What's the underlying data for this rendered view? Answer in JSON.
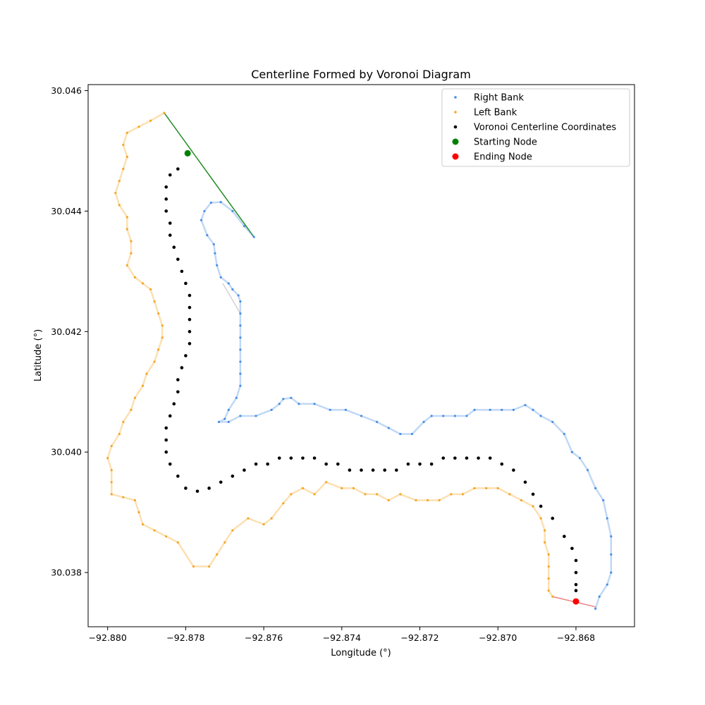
{
  "chart_data": {
    "type": "scatter",
    "title": "Centerline Formed by Voronoi Diagram",
    "xlabel": "Longitude (°)",
    "ylabel": "Latitude (°)",
    "xlim": [
      -92.8805,
      -92.8665
    ],
    "ylim": [
      30.0371,
      30.0461
    ],
    "xticks": [
      -92.88,
      -92.878,
      -92.876,
      -92.874,
      -92.872,
      -92.87,
      -92.868
    ],
    "yticks": [
      30.038,
      30.04,
      30.042,
      30.044,
      30.046
    ],
    "xtick_labels": [
      "−92.880",
      "−92.878",
      "−92.876",
      "−92.874",
      "−92.872",
      "−92.870",
      "−92.868"
    ],
    "ytick_labels": [
      "30.038",
      "30.040",
      "30.042",
      "30.044",
      "30.046"
    ],
    "grid": false,
    "legend_position": "top-right",
    "colors": {
      "right_bank": "#4a90e2",
      "left_bank": "#f5a623",
      "centerline": "#000000",
      "start": "#008000",
      "end": "#ff0000",
      "start_line": "#228b22",
      "end_line": "#f08080",
      "gap_line": "#d3d3d3"
    },
    "series": [
      {
        "name": "Right Bank",
        "marker": "point",
        "points": [
          [
            -92.87625,
            30.04357
          ],
          [
            -92.8765,
            30.04375
          ],
          [
            -92.8768,
            30.044
          ],
          [
            -92.8771,
            30.04415
          ],
          [
            -92.87735,
            30.04414
          ],
          [
            -92.87752,
            30.044
          ],
          [
            -92.8776,
            30.04385
          ],
          [
            -92.87745,
            30.0436
          ],
          [
            -92.87728,
            30.04345
          ],
          [
            -92.87725,
            30.0433
          ],
          [
            -92.8772,
            30.0431
          ],
          [
            -92.8771,
            30.0429
          ],
          [
            -92.8769,
            30.0428
          ],
          [
            -92.8768,
            30.0427
          ],
          [
            -92.87665,
            30.0426
          ],
          [
            -92.8766,
            30.0425
          ],
          [
            -92.8766,
            30.0423
          ],
          [
            -92.8766,
            30.0421
          ],
          [
            -92.8766,
            30.0419
          ],
          [
            -92.8766,
            30.0417
          ],
          [
            -92.8766,
            30.0415
          ],
          [
            -92.8766,
            30.0413
          ],
          [
            -92.8766,
            30.0411
          ],
          [
            -92.8767,
            30.0409
          ],
          [
            -92.8769,
            30.0407
          ],
          [
            -92.877,
            30.04055
          ],
          [
            -92.87715,
            30.0405
          ],
          [
            -92.8769,
            30.0405
          ],
          [
            -92.8766,
            30.0406
          ],
          [
            -92.8762,
            30.0406
          ],
          [
            -92.8758,
            30.0407
          ],
          [
            -92.8756,
            30.0408
          ],
          [
            -92.8755,
            30.04088
          ],
          [
            -92.8753,
            30.0409
          ],
          [
            -92.8751,
            30.0408
          ],
          [
            -92.8747,
            30.0408
          ],
          [
            -92.8743,
            30.0407
          ],
          [
            -92.8739,
            30.0407
          ],
          [
            -92.8735,
            30.0406
          ],
          [
            -92.8731,
            30.0405
          ],
          [
            -92.8728,
            30.0404
          ],
          [
            -92.8725,
            30.0403
          ],
          [
            -92.8722,
            30.0403
          ],
          [
            -92.8719,
            30.0405
          ],
          [
            -92.8717,
            30.0406
          ],
          [
            -92.8714,
            30.0406
          ],
          [
            -92.8711,
            30.0406
          ],
          [
            -92.8708,
            30.0406
          ],
          [
            -92.8706,
            30.0407
          ],
          [
            -92.8702,
            30.0407
          ],
          [
            -92.8699,
            30.0407
          ],
          [
            -92.8696,
            30.0407
          ],
          [
            -92.8693,
            30.04078
          ],
          [
            -92.8691,
            30.0407
          ],
          [
            -92.8689,
            30.0406
          ],
          [
            -92.8686,
            30.0405
          ],
          [
            -92.8683,
            30.0403
          ],
          [
            -92.8681,
            30.04
          ],
          [
            -92.8679,
            30.0399
          ],
          [
            -92.8677,
            30.0397
          ],
          [
            -92.8675,
            30.0394
          ],
          [
            -92.8673,
            30.0392
          ],
          [
            -92.8672,
            30.0389
          ],
          [
            -92.8671,
            30.0386
          ],
          [
            -92.8671,
            30.0383
          ],
          [
            -92.8671,
            30.038
          ],
          [
            -92.8672,
            30.0378
          ],
          [
            -92.8674,
            30.0376
          ],
          [
            -92.8675,
            30.0374
          ]
        ]
      },
      {
        "name": "Left Bank",
        "marker": "point",
        "points": [
          [
            -92.87855,
            30.04563
          ],
          [
            -92.8789,
            30.0455
          ],
          [
            -92.8792,
            30.0454
          ],
          [
            -92.8795,
            30.0453
          ],
          [
            -92.8796,
            30.0451
          ],
          [
            -92.8795,
            30.0449
          ],
          [
            -92.8796,
            30.0447
          ],
          [
            -92.8797,
            30.0445
          ],
          [
            -92.8798,
            30.0443
          ],
          [
            -92.8797,
            30.0441
          ],
          [
            -92.8795,
            30.0439
          ],
          [
            -92.8795,
            30.0437
          ],
          [
            -92.8794,
            30.0435
          ],
          [
            -92.8794,
            30.0433
          ],
          [
            -92.8795,
            30.0431
          ],
          [
            -92.8793,
            30.0429
          ],
          [
            -92.8791,
            30.0428
          ],
          [
            -92.8789,
            30.0427
          ],
          [
            -92.8788,
            30.0425
          ],
          [
            -92.8787,
            30.0423
          ],
          [
            -92.8786,
            30.0421
          ],
          [
            -92.8786,
            30.0419
          ],
          [
            -92.8787,
            30.0417
          ],
          [
            -92.8788,
            30.0415
          ],
          [
            -92.879,
            30.0413
          ],
          [
            -92.8791,
            30.0411
          ],
          [
            -92.8793,
            30.0409
          ],
          [
            -92.8794,
            30.0407
          ],
          [
            -92.8796,
            30.0405
          ],
          [
            -92.8797,
            30.0403
          ],
          [
            -92.8799,
            30.0401
          ],
          [
            -92.88,
            30.0399
          ],
          [
            -92.8799,
            30.0397
          ],
          [
            -92.8799,
            30.0395
          ],
          [
            -92.8799,
            30.0393
          ],
          [
            -92.8796,
            30.03925
          ],
          [
            -92.8793,
            30.0392
          ],
          [
            -92.8792,
            30.039
          ],
          [
            -92.8791,
            30.0388
          ],
          [
            -92.8788,
            30.0387
          ],
          [
            -92.8785,
            30.0386
          ],
          [
            -92.8782,
            30.0385
          ],
          [
            -92.8778,
            30.0381
          ],
          [
            -92.8774,
            30.0381
          ],
          [
            -92.8772,
            30.0383
          ],
          [
            -92.877,
            30.0385
          ],
          [
            -92.8768,
            30.0387
          ],
          [
            -92.8764,
            30.0389
          ],
          [
            -92.876,
            30.0388
          ],
          [
            -92.8758,
            30.0389
          ],
          [
            -92.8755,
            30.03915
          ],
          [
            -92.8753,
            30.0393
          ],
          [
            -92.875,
            30.0394
          ],
          [
            -92.8747,
            30.0393
          ],
          [
            -92.8744,
            30.0395
          ],
          [
            -92.874,
            30.0394
          ],
          [
            -92.8737,
            30.0394
          ],
          [
            -92.8734,
            30.0393
          ],
          [
            -92.8731,
            30.0393
          ],
          [
            -92.8728,
            30.0392
          ],
          [
            -92.8725,
            30.0393
          ],
          [
            -92.8721,
            30.0392
          ],
          [
            -92.8718,
            30.0392
          ],
          [
            -92.8715,
            30.0392
          ],
          [
            -92.8712,
            30.0393
          ],
          [
            -92.8709,
            30.0393
          ],
          [
            -92.8706,
            30.0394
          ],
          [
            -92.8703,
            30.0394
          ],
          [
            -92.87,
            30.0394
          ],
          [
            -92.8697,
            30.0393
          ],
          [
            -92.8694,
            30.0392
          ],
          [
            -92.8691,
            30.0391
          ],
          [
            -92.8689,
            30.0389
          ],
          [
            -92.8688,
            30.0387
          ],
          [
            -92.8688,
            30.0385
          ],
          [
            -92.8687,
            30.0383
          ],
          [
            -92.8687,
            30.0381
          ],
          [
            -92.8687,
            30.0379
          ],
          [
            -92.8687,
            30.0377
          ],
          [
            -92.8686,
            30.0376
          ]
        ]
      },
      {
        "name": "Voronoi Centerline Coordinates",
        "marker": "dot",
        "points": [
          [
            -92.87795,
            30.04495
          ],
          [
            -92.8782,
            30.0447
          ],
          [
            -92.8784,
            30.0446
          ],
          [
            -92.8785,
            30.0444
          ],
          [
            -92.8785,
            30.0442
          ],
          [
            -92.8785,
            30.044
          ],
          [
            -92.8784,
            30.0438
          ],
          [
            -92.8784,
            30.0436
          ],
          [
            -92.8783,
            30.0434
          ],
          [
            -92.8782,
            30.0432
          ],
          [
            -92.8781,
            30.043
          ],
          [
            -92.878,
            30.0428
          ],
          [
            -92.8779,
            30.0426
          ],
          [
            -92.8779,
            30.0424
          ],
          [
            -92.8779,
            30.0422
          ],
          [
            -92.8779,
            30.042
          ],
          [
            -92.8779,
            30.0418
          ],
          [
            -92.878,
            30.0416
          ],
          [
            -92.8781,
            30.0414
          ],
          [
            -92.8782,
            30.0412
          ],
          [
            -92.8782,
            30.041
          ],
          [
            -92.8783,
            30.0408
          ],
          [
            -92.8784,
            30.0406
          ],
          [
            -92.8785,
            30.0404
          ],
          [
            -92.8785,
            30.0402
          ],
          [
            -92.8785,
            30.04
          ],
          [
            -92.8784,
            30.0398
          ],
          [
            -92.8782,
            30.0396
          ],
          [
            -92.878,
            30.0394
          ],
          [
            -92.8777,
            30.03935
          ],
          [
            -92.8774,
            30.0394
          ],
          [
            -92.8771,
            30.0395
          ],
          [
            -92.8768,
            30.0396
          ],
          [
            -92.8765,
            30.0397
          ],
          [
            -92.8762,
            30.0398
          ],
          [
            -92.8759,
            30.0398
          ],
          [
            -92.8756,
            30.0399
          ],
          [
            -92.8753,
            30.0399
          ],
          [
            -92.875,
            30.0399
          ],
          [
            -92.8747,
            30.0399
          ],
          [
            -92.8744,
            30.0398
          ],
          [
            -92.8741,
            30.0398
          ],
          [
            -92.8738,
            30.0397
          ],
          [
            -92.8735,
            30.0397
          ],
          [
            -92.8732,
            30.0397
          ],
          [
            -92.8729,
            30.0397
          ],
          [
            -92.8726,
            30.0397
          ],
          [
            -92.8723,
            30.0398
          ],
          [
            -92.872,
            30.0398
          ],
          [
            -92.8717,
            30.0398
          ],
          [
            -92.8714,
            30.0399
          ],
          [
            -92.8711,
            30.0399
          ],
          [
            -92.8708,
            30.0399
          ],
          [
            -92.8705,
            30.0399
          ],
          [
            -92.8702,
            30.0399
          ],
          [
            -92.8699,
            30.0398
          ],
          [
            -92.8696,
            30.0397
          ],
          [
            -92.8693,
            30.0395
          ],
          [
            -92.8691,
            30.0393
          ],
          [
            -92.8689,
            30.0391
          ],
          [
            -92.8686,
            30.0389
          ],
          [
            -92.8683,
            30.0386
          ],
          [
            -92.8681,
            30.0384
          ],
          [
            -92.868,
            30.0382
          ],
          [
            -92.868,
            30.038
          ],
          [
            -92.868,
            30.0378
          ],
          [
            -92.868,
            30.0377
          ]
        ]
      },
      {
        "name": "Starting Node",
        "marker": "large",
        "points": [
          [
            -92.87795,
            30.04496
          ]
        ]
      },
      {
        "name": "Ending Node",
        "marker": "large",
        "points": [
          [
            -92.868,
            30.03752
          ]
        ]
      }
    ],
    "lines": [
      {
        "name": "start-connector",
        "color_key": "start_line",
        "points": [
          [
            -92.87855,
            30.04563
          ],
          [
            -92.87625,
            30.04357
          ]
        ]
      },
      {
        "name": "end-connector",
        "color_key": "end_line",
        "points": [
          [
            -92.8686,
            30.0376
          ],
          [
            -92.8675,
            30.03743
          ]
        ]
      },
      {
        "name": "bank-gap",
        "color_key": "gap_line",
        "points": [
          [
            -92.87705,
            30.0428
          ],
          [
            -92.8766,
            30.0423
          ]
        ]
      }
    ]
  }
}
